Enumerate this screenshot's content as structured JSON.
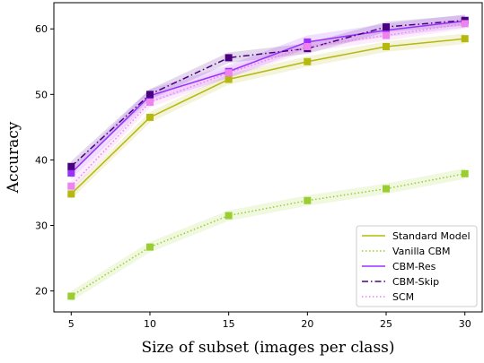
{
  "chart_data": {
    "type": "line",
    "xlabel": "Size of subset (images per class)",
    "ylabel": "Accuracy",
    "x": [
      5,
      10,
      15,
      20,
      25,
      30
    ],
    "xlim": [
      3.9,
      31.1
    ],
    "ylim": [
      16.8,
      64.0
    ],
    "xticks": [
      5,
      10,
      15,
      20,
      25,
      30
    ],
    "yticks": [
      20,
      30,
      40,
      50,
      60
    ],
    "grid": false,
    "legend_position": "bottom-right",
    "series": [
      {
        "name": "Standard Model",
        "values": [
          34.8,
          46.5,
          52.3,
          55.0,
          57.3,
          58.5
        ],
        "band": 0.8,
        "color": "#b5b80f",
        "dash": "solid",
        "marker": "square"
      },
      {
        "name": "Vanilla CBM",
        "values": [
          19.2,
          26.7,
          31.5,
          33.8,
          35.6,
          37.9
        ],
        "band": 0.8,
        "color": "#9acd32",
        "dash": "dotted",
        "marker": "square"
      },
      {
        "name": "CBM-Res",
        "values": [
          38.0,
          49.8,
          53.5,
          58.0,
          59.8,
          61.2
        ],
        "band": 1.0,
        "color": "#9b30ff",
        "dash": "solid",
        "marker": "square"
      },
      {
        "name": "CBM-Skip",
        "values": [
          39.0,
          50.0,
          55.6,
          57.0,
          60.3,
          61.3
        ],
        "band": 0.8,
        "color": "#4b0082",
        "dash": "dashdot",
        "marker": "square"
      },
      {
        "name": "SCM",
        "values": [
          36.0,
          48.8,
          53.3,
          57.3,
          59.0,
          60.8
        ],
        "band": 0.8,
        "color": "#ee82ee",
        "dash": "dotted",
        "marker": "square"
      }
    ]
  }
}
